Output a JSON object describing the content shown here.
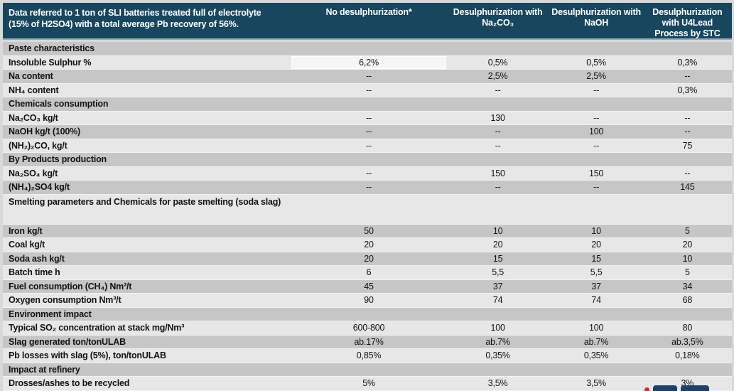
{
  "page": {
    "corner_header": "Data referred to 1 ton of SLI batteries treated full of electrolyte\n(15% of H2SO4) with a total average Pb recovery of 56%.",
    "columns": [
      "No desulphurization*",
      "Desulphurization with\nNa₂CO₃",
      "Desulphurization with\nNaOH",
      "Desulphurization\nwith U4Lead\nProcess by STC"
    ],
    "rows": [
      {
        "type": "section",
        "label": "Paste characteristics"
      },
      {
        "type": "data",
        "label": "Insoluble Sulphur %",
        "values": [
          "6,2%",
          "0,5%",
          "0,5%",
          "0,3%"
        ],
        "highlight_first": true
      },
      {
        "type": "data",
        "label": "Na content",
        "values": [
          "--",
          "2,5%",
          "2,5%",
          "--"
        ]
      },
      {
        "type": "data",
        "label": "NH₄ content",
        "values": [
          "--",
          "--",
          "--",
          "0,3%"
        ]
      },
      {
        "type": "section",
        "label": "Chemicals consumption"
      },
      {
        "type": "data",
        "label": "Na₂CO₃ kg/t",
        "values": [
          "--",
          "130",
          "--",
          "--"
        ]
      },
      {
        "type": "data",
        "label": "NaOH kg/t (100%)",
        "values": [
          "--",
          "--",
          "100",
          "--"
        ]
      },
      {
        "type": "data",
        "label": "(NH₂)₂CO, kg/t",
        "values": [
          "--",
          "--",
          "--",
          "75"
        ]
      },
      {
        "type": "section",
        "label": "By Products production"
      },
      {
        "type": "data",
        "label": "Na₂SO₄ kg/t",
        "values": [
          "--",
          "150",
          "150",
          "--"
        ]
      },
      {
        "type": "data",
        "label": "(NH₄)₂SO4 kg/t",
        "values": [
          "--",
          "--",
          "--",
          "145"
        ]
      },
      {
        "type": "section",
        "label": "Smelting parameters and Chemicals for paste smelting (soda slag)",
        "tall": true
      },
      {
        "type": "data",
        "label": "Iron kg/t",
        "values": [
          "50",
          "10",
          "10",
          "5"
        ]
      },
      {
        "type": "data",
        "label": "Coal kg/t",
        "values": [
          "20",
          "20",
          "20",
          "20"
        ]
      },
      {
        "type": "data",
        "label": "Soda ash kg/t",
        "values": [
          "20",
          "15",
          "15",
          "10"
        ]
      },
      {
        "type": "data",
        "label": "Batch time h",
        "values": [
          "6",
          "5,5",
          "5,5",
          "5"
        ]
      },
      {
        "type": "data",
        "label": "Fuel consumption (CH₄) Nm³/t",
        "values": [
          "45",
          "37",
          "37",
          "34"
        ]
      },
      {
        "type": "data",
        "label": "Oxygen consumption Nm³/t",
        "values": [
          "90",
          "74",
          "74",
          "68"
        ]
      },
      {
        "type": "section",
        "label": "Environment impact"
      },
      {
        "type": "data",
        "label": "Typical SO₂ concentration at stack mg/Nm³",
        "values": [
          "600-800",
          "100",
          "100",
          "80"
        ]
      },
      {
        "type": "data",
        "label": "Slag generated ton/tonULAB",
        "values": [
          "ab.17%",
          "ab.7%",
          "ab.7%",
          "ab.3,5%"
        ]
      },
      {
        "type": "data",
        "label": "Pb losses with slag (5%), ton/tonULAB",
        "values": [
          "0,85%",
          "0,35%",
          "0,35%",
          "0,18%"
        ]
      },
      {
        "type": "section",
        "label": "Impact at refinery"
      },
      {
        "type": "data",
        "label": "Drosses/ashes to be recycled",
        "values": [
          "5%",
          "3,5%",
          "3,5%",
          "3%"
        ]
      }
    ],
    "colors": {
      "header_bg": "#17465f",
      "header_text": "#ffffff",
      "row_dark": "#c6c6c6",
      "row_light": "#e7e7e7",
      "frame_bg": "#d9d9d9",
      "highlight_cell": "#f6f6f6",
      "logo_blue": "#1e3f66",
      "logo_red": "#cc2a22"
    }
  }
}
